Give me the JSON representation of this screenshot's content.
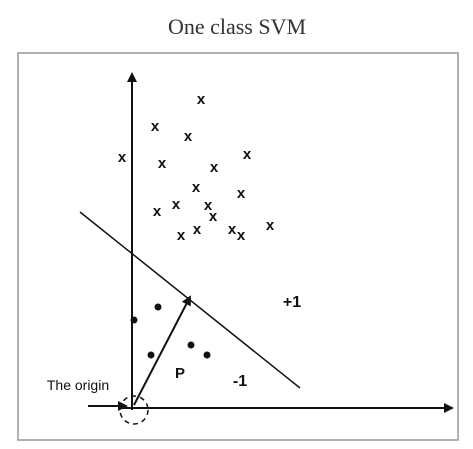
{
  "title": "One class SVM",
  "marker": "x",
  "labels": {
    "positive": "+1",
    "negative": "-1",
    "vector": "P",
    "origin": "The origin"
  }
}
